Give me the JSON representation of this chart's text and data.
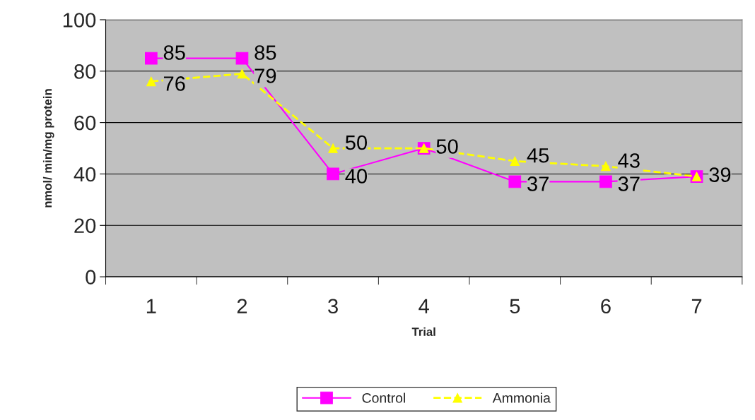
{
  "chart_data": {
    "type": "line",
    "xlabel": "Trial",
    "ylabel": "nmol/ min/mg protein",
    "categories": [
      "1",
      "2",
      "3",
      "4",
      "5",
      "6",
      "7"
    ],
    "series": [
      {
        "name": "Control",
        "color": "#ff00ff",
        "marker": "square",
        "line_style": "solid",
        "values": [
          85,
          85,
          40,
          50,
          37,
          37,
          39
        ],
        "value_labels": [
          "85",
          "85",
          "40",
          "50",
          "37",
          "37",
          null
        ]
      },
      {
        "name": "Ammonia",
        "color": "#ffff00",
        "marker": "triangle",
        "line_style": "dashed",
        "values": [
          76,
          79,
          50,
          50,
          45,
          43,
          39
        ],
        "value_labels": [
          "76",
          "79",
          "50",
          null,
          "45",
          "43",
          "39"
        ]
      }
    ],
    "ylim": [
      0,
      100
    ],
    "yticks": [
      0,
      20,
      40,
      60,
      80,
      100
    ],
    "grid": "y",
    "legend": "bottom"
  }
}
